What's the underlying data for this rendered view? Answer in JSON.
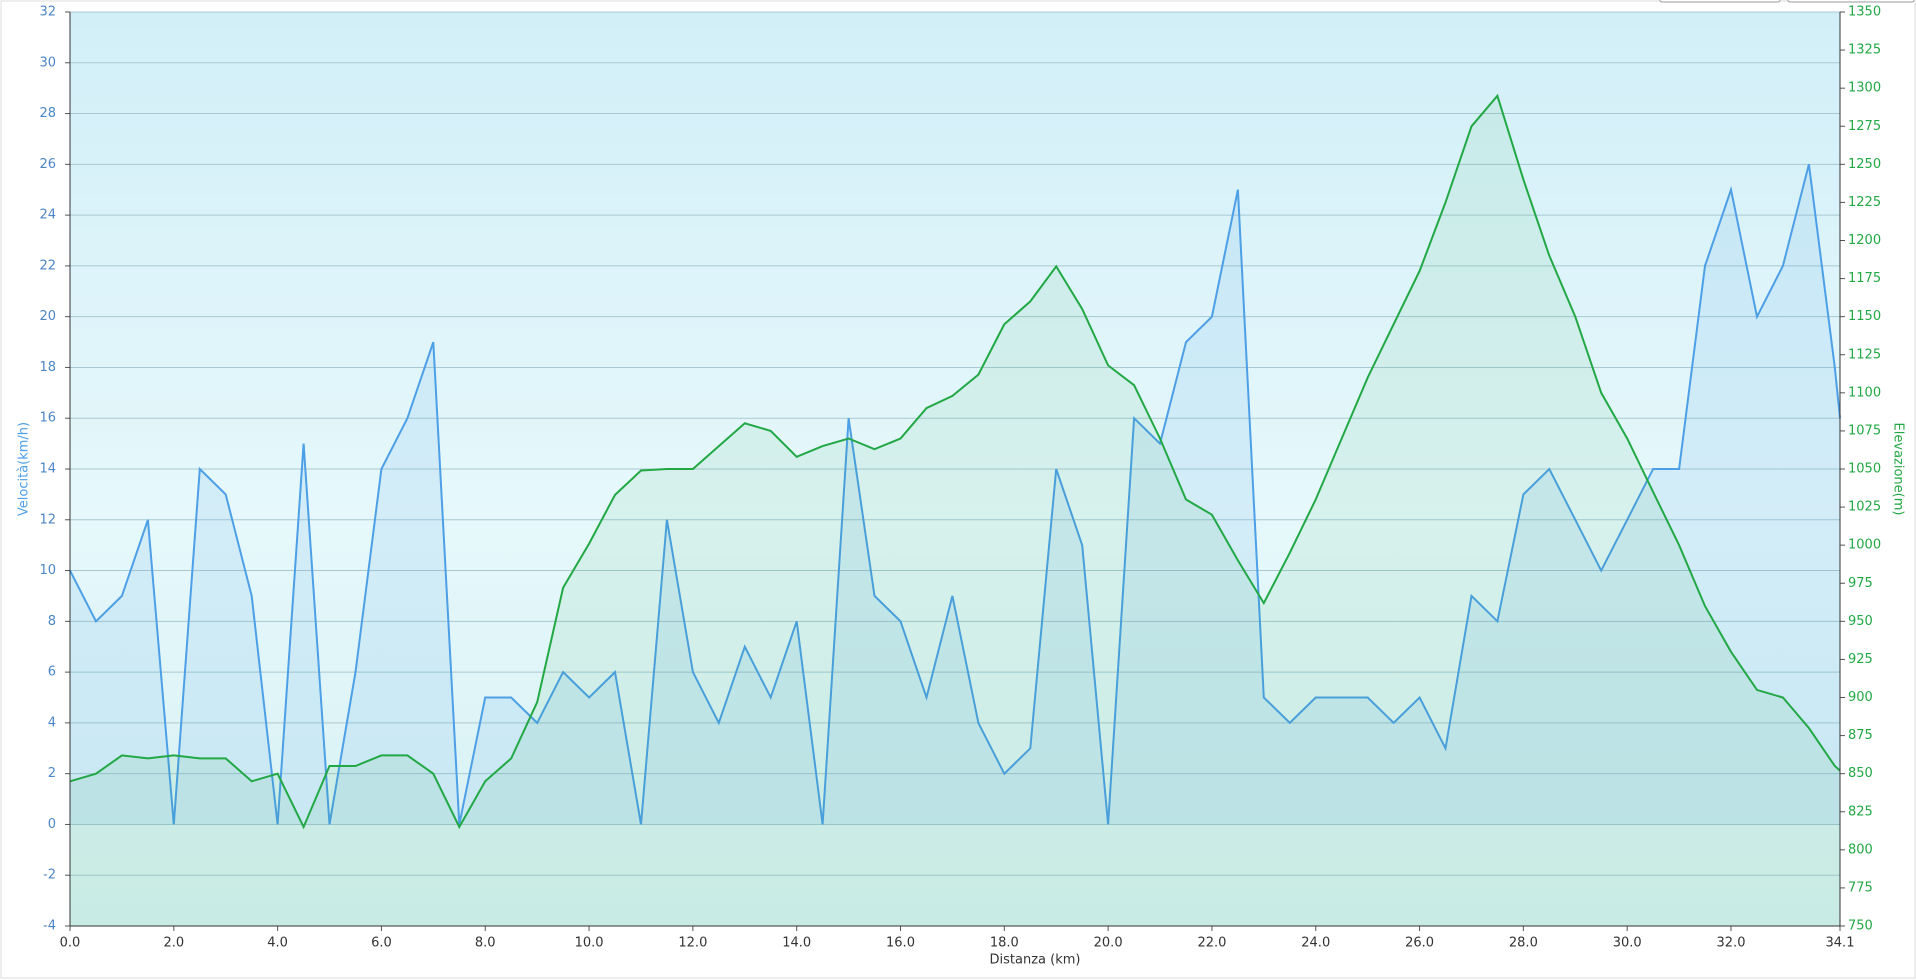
{
  "chart_data": {
    "type": "line",
    "xlabel": "Distanza  (km)",
    "ylabel": "Velocità(km/h)",
    "y2label": "Elevazione(m)",
    "x": [
      0,
      0.5,
      1,
      1.5,
      2,
      2.5,
      3,
      3.5,
      4,
      4.5,
      5,
      5.5,
      6,
      6.5,
      7,
      7.5,
      8,
      8.5,
      9,
      9.5,
      10,
      10.5,
      11,
      11.5,
      12,
      12.5,
      13,
      13.5,
      14,
      14.5,
      15,
      15.5,
      16,
      16.5,
      17,
      17.5,
      18,
      18.5,
      19,
      19.5,
      20,
      20.5,
      21,
      21.5,
      22,
      22.5,
      23,
      23.5,
      24,
      24.5,
      25,
      25.5,
      26,
      26.5,
      27,
      27.5,
      28,
      28.5,
      29,
      29.5,
      30,
      30.5,
      31,
      31.5,
      32,
      32.5,
      33,
      33.5,
      34,
      34.1
    ],
    "series": [
      {
        "name": "Velocità",
        "color": "#4d9fe6",
        "values": [
          10,
          8,
          9,
          12,
          0,
          14,
          13,
          9,
          0,
          15,
          0,
          6,
          14,
          16,
          19,
          0,
          5,
          5,
          4,
          6,
          5,
          6,
          0,
          12,
          6,
          4,
          7,
          5,
          8,
          0,
          16,
          9,
          8,
          5,
          9,
          4,
          2,
          3,
          14,
          11,
          0,
          16,
          15,
          19,
          20,
          25,
          5,
          4,
          5,
          5,
          5,
          4,
          5,
          3,
          9,
          8,
          13,
          14,
          12,
          10,
          12,
          14,
          14,
          22,
          25,
          20,
          22,
          26,
          18,
          16
        ]
      },
      {
        "name": "Elevazione",
        "color": "#22a845",
        "axis": "y2",
        "values": [
          845,
          850,
          862,
          860,
          862,
          860,
          860,
          845,
          850,
          815,
          855,
          855,
          862,
          862,
          850,
          815,
          845,
          860,
          897,
          972,
          1001,
          1033,
          1049,
          1050,
          1050,
          1065,
          1080,
          1075,
          1058,
          1065,
          1070,
          1063,
          1070,
          1090,
          1098,
          1112,
          1145,
          1160,
          1183,
          1155,
          1118,
          1105,
          1070,
          1030,
          1020,
          990,
          962,
          995,
          1030,
          1070,
          1110,
          1145,
          1180,
          1225,
          1275,
          1295,
          1240,
          1190,
          1150,
          1100,
          1070,
          1035,
          1000,
          960,
          930,
          905,
          900,
          880,
          855,
          852
        ]
      }
    ],
    "xlim": [
      0,
      34.1
    ],
    "xticks": [
      {
        "value": 0,
        "label": "0.0"
      },
      {
        "value": 2,
        "label": "2.0"
      },
      {
        "value": 4,
        "label": "4.0"
      },
      {
        "value": 6,
        "label": "6.0"
      },
      {
        "value": 8,
        "label": "8.0"
      },
      {
        "value": 10,
        "label": "10.0"
      },
      {
        "value": 12,
        "label": "12.0"
      },
      {
        "value": 14,
        "label": "14.0"
      },
      {
        "value": 16,
        "label": "16.0"
      },
      {
        "value": 18,
        "label": "18.0"
      },
      {
        "value": 20,
        "label": "20.0"
      },
      {
        "value": 22,
        "label": "22.0"
      },
      {
        "value": 24,
        "label": "24.0"
      },
      {
        "value": 26,
        "label": "26.0"
      },
      {
        "value": 28,
        "label": "28.0"
      },
      {
        "value": 30,
        "label": "30.0"
      },
      {
        "value": 32,
        "label": "32.0"
      },
      {
        "value": 34.1,
        "label": "34.1"
      }
    ],
    "ylim": [
      -4,
      32
    ],
    "yticks": [
      -4,
      -2,
      0,
      2,
      4,
      6,
      8,
      10,
      12,
      14,
      16,
      18,
      20,
      22,
      24,
      26,
      28,
      30,
      32
    ],
    "y2lim": [
      750,
      1350
    ],
    "y2ticks": [
      750,
      775,
      800,
      825,
      850,
      875,
      900,
      925,
      950,
      975,
      1000,
      1025,
      1050,
      1075,
      1100,
      1125,
      1150,
      1175,
      1200,
      1225,
      1250,
      1275,
      1300,
      1325,
      1350
    ],
    "grid": true
  }
}
